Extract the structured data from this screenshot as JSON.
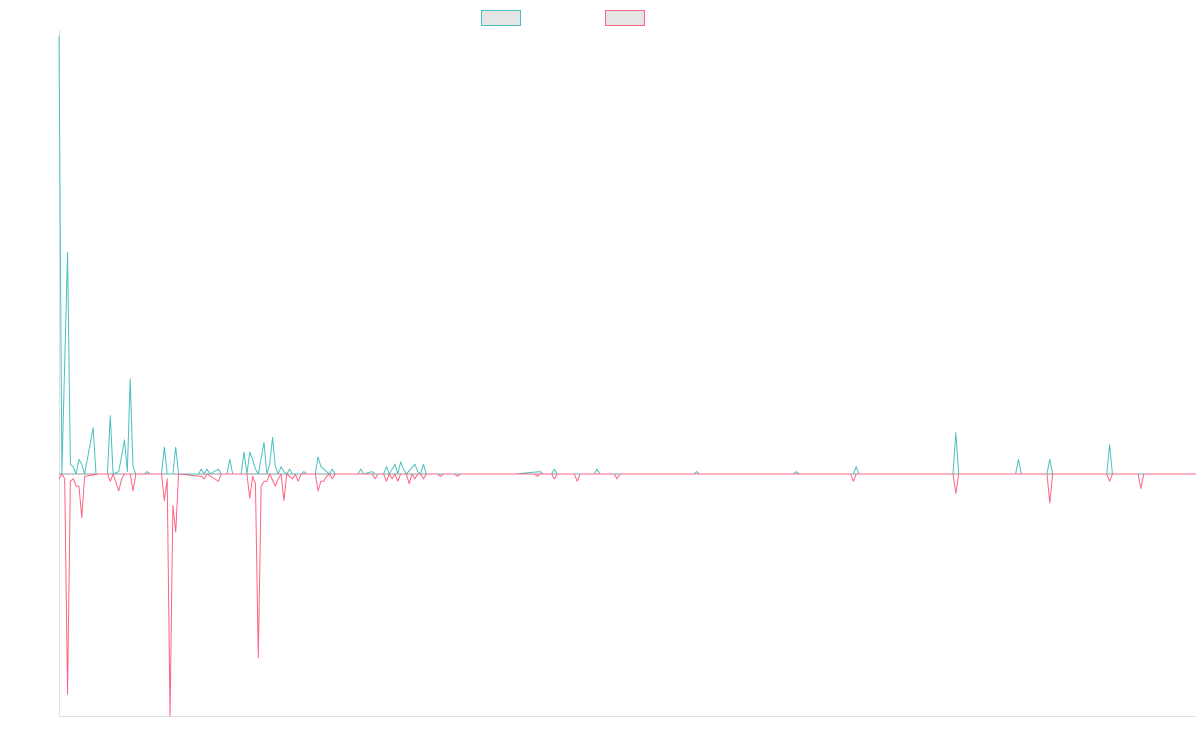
{
  "chart_data": {
    "type": "line",
    "title": "",
    "xlabel": "",
    "ylabel": "",
    "x": {
      "count": 400
    },
    "ylim": [
      -1.0,
      1.8
    ],
    "grid": false,
    "legend": {
      "placement": "top-center"
    },
    "series": [
      {
        "name": "",
        "color": "#4bc0c0",
        "fill": "#e5e5e5",
        "points": [
          [
            0,
            1.8
          ],
          [
            1,
            0.0
          ],
          [
            3,
            0.91
          ],
          [
            4,
            0.04
          ],
          [
            5,
            0.03
          ],
          [
            6,
            0.0
          ],
          [
            7,
            0.06
          ],
          [
            8,
            0.04
          ],
          [
            9,
            0.0
          ],
          [
            12,
            0.19
          ],
          [
            13,
            0.0
          ],
          [
            17,
            0.0
          ],
          [
            18,
            0.24
          ],
          [
            19,
            0.0
          ],
          [
            21,
            0.01
          ],
          [
            23,
            0.14
          ],
          [
            24,
            0.01
          ],
          [
            25,
            0.39
          ],
          [
            26,
            0.03
          ],
          [
            27,
            0.0
          ],
          [
            30,
            0.0
          ],
          [
            31,
            0.01
          ],
          [
            32,
            0.0
          ],
          [
            36,
            0.0
          ],
          [
            37,
            0.11
          ],
          [
            38,
            0.0
          ],
          [
            40,
            0.0
          ],
          [
            41,
            0.11
          ],
          [
            42,
            0.0
          ],
          [
            49,
            0.0
          ],
          [
            50,
            0.02
          ],
          [
            51,
            0.0
          ],
          [
            52,
            0.02
          ],
          [
            53,
            0.0
          ],
          [
            56,
            0.02
          ],
          [
            57,
            0.0
          ],
          [
            59,
            0.0
          ],
          [
            60,
            0.06
          ],
          [
            61,
            0.0
          ],
          [
            64,
            0.0
          ],
          [
            65,
            0.09
          ],
          [
            66,
            0.0
          ],
          [
            67,
            0.09
          ],
          [
            68,
            0.06
          ],
          [
            69,
            0.02
          ],
          [
            70,
            0.0
          ],
          [
            72,
            0.13
          ],
          [
            73,
            0.0
          ],
          [
            74,
            0.04
          ],
          [
            75,
            0.15
          ],
          [
            76,
            0.03
          ],
          [
            77,
            0.0
          ],
          [
            78,
            0.03
          ],
          [
            79,
            0.01
          ],
          [
            80,
            0.0
          ],
          [
            81,
            0.02
          ],
          [
            82,
            0.0
          ],
          [
            85,
            0.0
          ],
          [
            86,
            0.01
          ],
          [
            87,
            0.0
          ],
          [
            90,
            0.0
          ],
          [
            91,
            0.07
          ],
          [
            92,
            0.03
          ],
          [
            93,
            0.02
          ],
          [
            94,
            0.01
          ],
          [
            95,
            0.0
          ],
          [
            96,
            0.02
          ],
          [
            97,
            0.0
          ],
          [
            100,
            0.0
          ],
          [
            103,
            0.0
          ],
          [
            105,
            0.0
          ],
          [
            106,
            0.02
          ],
          [
            107,
            0.0
          ],
          [
            110,
            0.01
          ],
          [
            111,
            0.0
          ],
          [
            114,
            0.0
          ],
          [
            115,
            0.03
          ],
          [
            116,
            0.0
          ],
          [
            118,
            0.04
          ],
          [
            119,
            0.0
          ],
          [
            120,
            0.05
          ],
          [
            121,
            0.02
          ],
          [
            122,
            0.0
          ],
          [
            125,
            0.04
          ],
          [
            126,
            0.01
          ],
          [
            127,
            0.0
          ],
          [
            128,
            0.04
          ],
          [
            129,
            0.0
          ],
          [
            135,
            0.0
          ],
          [
            160,
            0.0
          ],
          [
            169,
            0.01
          ],
          [
            170,
            0.0
          ],
          [
            173,
            0.0
          ],
          [
            174,
            0.02
          ],
          [
            175,
            0.0
          ],
          [
            188,
            0.0
          ],
          [
            189,
            0.02
          ],
          [
            190,
            0.0
          ],
          [
            223,
            0.0
          ],
          [
            224,
            0.01
          ],
          [
            225,
            0.0
          ],
          [
            258,
            0.0
          ],
          [
            259,
            0.01
          ],
          [
            260,
            0.0
          ],
          [
            279,
            0.0
          ],
          [
            280,
            0.03
          ],
          [
            281,
            0.0
          ],
          [
            314,
            0.0
          ],
          [
            315,
            0.17
          ],
          [
            316,
            0.0
          ],
          [
            336,
            0.0
          ],
          [
            337,
            0.06
          ],
          [
            338,
            0.0
          ],
          [
            347,
            0.0
          ],
          [
            348,
            0.06
          ],
          [
            349,
            0.0
          ],
          [
            368,
            0.0
          ],
          [
            369,
            0.12
          ],
          [
            370,
            0.0
          ],
          [
            399,
            0.0
          ]
        ]
      },
      {
        "name": "",
        "color": "#ff6384",
        "fill": "#e5e5e5",
        "points": [
          [
            0,
            -0.02
          ],
          [
            1,
            0.0
          ],
          [
            2,
            -0.02
          ],
          [
            3,
            -0.91
          ],
          [
            4,
            -0.03
          ],
          [
            5,
            -0.02
          ],
          [
            6,
            -0.05
          ],
          [
            7,
            -0.05
          ],
          [
            8,
            -0.18
          ],
          [
            9,
            -0.01
          ],
          [
            14,
            -0.0
          ],
          [
            15,
            0.0
          ],
          [
            17,
            0.0
          ],
          [
            18,
            -0.03
          ],
          [
            19,
            -0.0
          ],
          [
            21,
            -0.07
          ],
          [
            22,
            -0.02
          ],
          [
            23,
            0.0
          ],
          [
            25,
            -0.0
          ],
          [
            26,
            -0.07
          ],
          [
            27,
            0.0
          ],
          [
            36,
            -0.0
          ],
          [
            37,
            -0.11
          ],
          [
            38,
            -0.02
          ],
          [
            39,
            -1.0
          ],
          [
            40,
            -0.13
          ],
          [
            41,
            -0.24
          ],
          [
            42,
            0.0
          ],
          [
            50,
            -0.01
          ],
          [
            51,
            -0.02
          ],
          [
            52,
            0.0
          ],
          [
            56,
            -0.03
          ],
          [
            57,
            0.0
          ],
          [
            66,
            0.0
          ],
          [
            67,
            -0.1
          ],
          [
            68,
            -0.01
          ],
          [
            69,
            -0.04
          ],
          [
            70,
            -0.76
          ],
          [
            71,
            -0.05
          ],
          [
            72,
            -0.03
          ],
          [
            73,
            -0.03
          ],
          [
            74,
            0.0
          ],
          [
            76,
            -0.05
          ],
          [
            77,
            -0.02
          ],
          [
            78,
            0.0
          ],
          [
            79,
            -0.11
          ],
          [
            80,
            0.0
          ],
          [
            82,
            -0.02
          ],
          [
            83,
            0.0
          ],
          [
            84,
            -0.03
          ],
          [
            85,
            0.0
          ],
          [
            90,
            0.0
          ],
          [
            91,
            -0.07
          ],
          [
            92,
            -0.03
          ],
          [
            93,
            -0.03
          ],
          [
            94,
            -0.01
          ],
          [
            95,
            0.0
          ],
          [
            96,
            -0.02
          ],
          [
            97,
            0.0
          ],
          [
            110,
            0.0
          ],
          [
            111,
            -0.02
          ],
          [
            112,
            0.0
          ],
          [
            114,
            0.0
          ],
          [
            115,
            -0.03
          ],
          [
            116,
            0.0
          ],
          [
            117,
            -0.02
          ],
          [
            118,
            0.0
          ],
          [
            119,
            -0.03
          ],
          [
            120,
            0.0
          ],
          [
            122,
            0.0
          ],
          [
            123,
            -0.04
          ],
          [
            124,
            0.0
          ],
          [
            125,
            -0.02
          ],
          [
            126,
            -0.0
          ],
          [
            127,
            0.0
          ],
          [
            128,
            -0.02
          ],
          [
            129,
            0.0
          ],
          [
            133,
            0.0
          ],
          [
            134,
            -0.01
          ],
          [
            135,
            0.0
          ],
          [
            139,
            0.0
          ],
          [
            140,
            -0.01
          ],
          [
            141,
            0.0
          ],
          [
            167,
            0.0
          ],
          [
            168,
            -0.01
          ],
          [
            169,
            -0.0
          ],
          [
            170,
            0.0
          ],
          [
            173,
            0.0
          ],
          [
            174,
            -0.02
          ],
          [
            175,
            0.0
          ],
          [
            181,
            0.0
          ],
          [
            182,
            -0.03
          ],
          [
            183,
            0.0
          ],
          [
            195,
            0.0
          ],
          [
            196,
            -0.02
          ],
          [
            197,
            0.0
          ],
          [
            278,
            0.0
          ],
          [
            279,
            -0.03
          ],
          [
            280,
            0.0
          ],
          [
            314,
            0.0
          ],
          [
            315,
            -0.08
          ],
          [
            316,
            0.0
          ],
          [
            347,
            0.0
          ],
          [
            348,
            -0.12
          ],
          [
            349,
            0.0
          ],
          [
            368,
            0.0
          ],
          [
            369,
            -0.03
          ],
          [
            370,
            0.0
          ],
          [
            379,
            0.0
          ],
          [
            380,
            -0.06
          ],
          [
            381,
            0.0
          ],
          [
            399,
            0.0
          ]
        ]
      }
    ]
  }
}
